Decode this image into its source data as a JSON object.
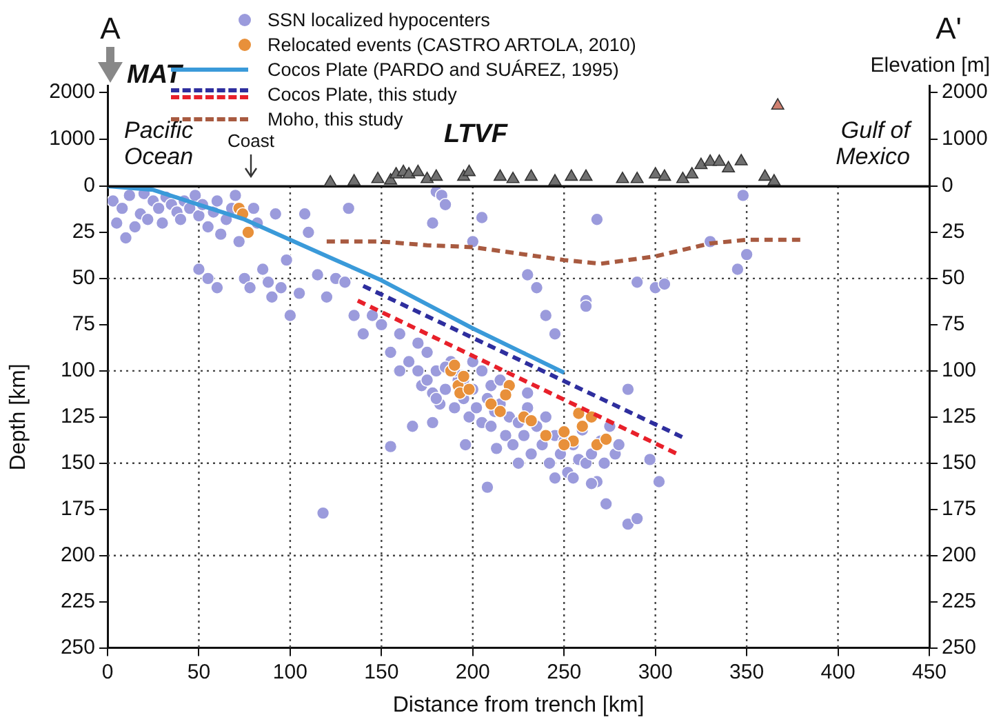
{
  "chart_data": [
    {
      "type": "scatter",
      "y2label": "Elevation [m]",
      "tick_labels": "y",
      "xlim": [
        0,
        450
      ],
      "xticks": [
        0,
        50,
        100,
        150,
        200,
        250,
        300,
        350,
        400,
        450
      ],
      "ylim": [
        0,
        2150
      ],
      "yticks": [
        1000,
        2000
      ],
      "y2lim": [
        0,
        2150
      ],
      "y2ticks": [
        1000,
        2000
      ],
      "marker": "triangle",
      "annotations": [
        "A",
        "A'",
        "MAT",
        "Pacific Ocean",
        "Coast",
        "LTVF",
        "Gulf of Mexico"
      ],
      "series": [
        {
          "color": "#707070",
          "x": [
            122,
            135,
            148,
            155,
            158,
            162,
            165,
            170,
            175,
            180,
            195,
            198,
            215,
            222,
            232,
            245,
            254,
            262,
            282,
            290,
            300,
            305,
            315,
            320,
            325,
            330,
            335,
            340,
            347,
            360,
            365
          ],
          "values": [
            80,
            100,
            150,
            120,
            250,
            300,
            250,
            300,
            150,
            200,
            200,
            300,
            200,
            150,
            200,
            100,
            200,
            200,
            150,
            150,
            250,
            200,
            150,
            250,
            450,
            520,
            520,
            380,
            530,
            200,
            100
          ]
        },
        {
          "color": "#d08070",
          "x": [
            367
          ],
          "values": [
            1720
          ]
        }
      ]
    },
    {
      "type": "scatter",
      "xlabel": "Distance from trench [km]",
      "ylabel": "Depth [km]",
      "xlim": [
        0,
        450
      ],
      "xticks": [
        0,
        50,
        100,
        150,
        200,
        250,
        300,
        350,
        400,
        450
      ],
      "ylim": [
        250,
        0
      ],
      "yticks": [
        0,
        25,
        50,
        75,
        100,
        125,
        150,
        175,
        200,
        225,
        250
      ],
      "y2lim": [
        250,
        0
      ],
      "y2ticks": [
        0,
        25,
        50,
        75,
        100,
        125,
        150,
        175,
        200,
        225,
        250
      ],
      "grid": true,
      "legend": "top",
      "series": [
        {
          "name": "SSN localized hypocenters",
          "marker": "circle",
          "color": "#9b9bdc",
          "x": [
            3,
            5,
            8,
            10,
            12,
            15,
            18,
            20,
            22,
            25,
            28,
            30,
            32,
            35,
            38,
            40,
            42,
            45,
            48,
            50,
            52,
            55,
            58,
            60,
            62,
            65,
            68,
            70,
            72,
            75,
            78,
            80,
            82,
            85,
            88,
            90,
            92,
            95,
            98,
            100,
            105,
            108,
            110,
            115,
            120,
            125,
            130,
            132,
            55,
            60,
            50,
            118,
            180,
            183,
            185,
            178,
            200,
            205,
            230,
            235,
            240,
            245,
            262,
            262,
            330,
            348,
            345,
            350,
            300,
            305,
            268,
            285,
            290,
            155,
            160,
            165,
            170,
            172,
            175,
            178,
            180,
            182,
            185,
            188,
            190,
            192,
            195,
            198,
            200,
            202,
            205,
            208,
            210,
            212,
            215,
            218,
            220,
            222,
            225,
            228,
            230,
            232,
            235,
            238,
            240,
            242,
            245,
            248,
            250,
            252,
            255,
            258,
            260,
            262,
            265,
            268,
            270,
            272,
            275,
            278,
            280,
            285,
            290,
            297,
            302,
            273,
            265,
            208,
            225,
            155,
            167,
            178,
            196,
            213,
            245,
            255,
            180,
            190,
            200,
            195,
            210,
            185,
            175,
            170,
            160,
            150,
            145,
            140,
            135,
            230,
            205,
            215
          ],
          "values": [
            8,
            20,
            12,
            28,
            5,
            22,
            15,
            4,
            18,
            8,
            12,
            20,
            6,
            10,
            14,
            18,
            8,
            12,
            5,
            16,
            10,
            22,
            14,
            8,
            26,
            18,
            12,
            5,
            30,
            50,
            55,
            12,
            20,
            45,
            52,
            60,
            15,
            55,
            40,
            70,
            58,
            15,
            25,
            48,
            60,
            50,
            52,
            12,
            50,
            55,
            45,
            177,
            3,
            5,
            10,
            20,
            30,
            17,
            48,
            55,
            70,
            80,
            62,
            65,
            30,
            5,
            45,
            37,
            55,
            53,
            18,
            110,
            52,
            90,
            100,
            95,
            100,
            108,
            105,
            112,
            100,
            118,
            110,
            95,
            120,
            105,
            115,
            125,
            110,
            120,
            128,
            115,
            130,
            122,
            118,
            135,
            125,
            140,
            128,
            135,
            120,
            145,
            130,
            140,
            125,
            150,
            135,
            145,
            138,
            155,
            140,
            148,
            132,
            150,
            145,
            160,
            138,
            150,
            130,
            145,
            140,
            183,
            180,
            148,
            160,
            172,
            161,
            163,
            150,
            141,
            130,
            128,
            140,
            142,
            158,
            158,
            115,
            100,
            95,
            105,
            108,
            98,
            90,
            85,
            80,
            75,
            70,
            80,
            70,
            112,
            100,
            105
          ]
        },
        {
          "name": "Relocated events (CASTRO ARTOLA, 2010)",
          "marker": "circle",
          "color": "#e8903a",
          "x": [
            72,
            74,
            77,
            188,
            190,
            192,
            195,
            193,
            198,
            210,
            215,
            228,
            232,
            240,
            250,
            255,
            258,
            265,
            268,
            273,
            220,
            218,
            260,
            250
          ],
          "values": [
            12,
            15,
            25,
            100,
            97,
            108,
            103,
            112,
            110,
            118,
            122,
            125,
            127,
            135,
            133,
            138,
            123,
            125,
            140,
            137,
            108,
            113,
            130,
            140
          ]
        },
        {
          "name": "Cocos Plate (PARDO and SUÁREZ, 1995)",
          "type": "line",
          "marker": "none",
          "line_style": "solid",
          "color": "#3a9ad9",
          "x": [
            0,
            25,
            50,
            75,
            100,
            125,
            150,
            175,
            200,
            225,
            250
          ],
          "values": [
            0,
            2,
            10,
            18,
            29,
            40,
            51,
            64,
            77,
            89,
            101
          ]
        },
        {
          "name": "Cocos Plate, this study",
          "type": "line",
          "marker": "none",
          "line_style": "dashed",
          "color": "#2e2e9e",
          "x": [
            140,
            315
          ],
          "values": [
            54,
            136
          ]
        },
        {
          "type": "line",
          "marker": "none",
          "line_style": "dashed",
          "color": "#e8202a",
          "x": [
            137,
            312
          ],
          "values": [
            62,
            145
          ]
        },
        {
          "name": "Moho, this study",
          "type": "line",
          "marker": "none",
          "line_style": "dashed",
          "color": "#a85a40",
          "x": [
            120,
            150,
            175,
            200,
            250,
            270,
            300,
            330,
            350,
            380
          ],
          "values": [
            30,
            30,
            32,
            33,
            40,
            42,
            38,
            31,
            29,
            29
          ]
        }
      ]
    }
  ]
}
